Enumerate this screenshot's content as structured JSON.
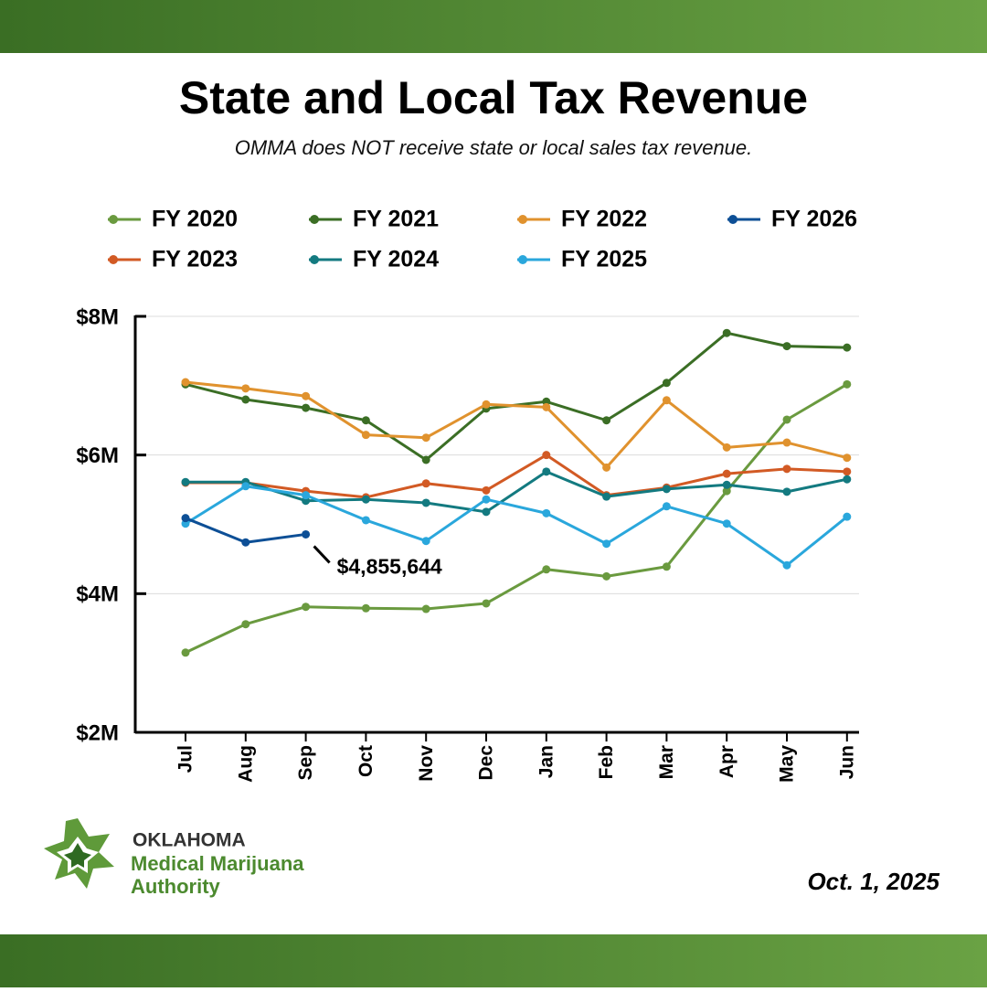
{
  "chart_data": {
    "type": "line",
    "title": "State and Local Tax Revenue",
    "subtitle": "OMMA does NOT receive state or local sales tax revenue.",
    "categories": [
      "Jul",
      "Aug",
      "Sep",
      "Oct",
      "Nov",
      "Dec",
      "Jan",
      "Feb",
      "Mar",
      "Apr",
      "May",
      "Jun"
    ],
    "series": [
      {
        "name": "FY 2020",
        "color": "#6a9a3f",
        "values": [
          3150000,
          3560000,
          3810000,
          3790000,
          3780000,
          3860000,
          4350000,
          4250000,
          4390000,
          5480000,
          6510000,
          7020000
        ]
      },
      {
        "name": "FY 2021",
        "color": "#3b6e25",
        "values": [
          7020000,
          6800000,
          6680000,
          6500000,
          5930000,
          6670000,
          6770000,
          6500000,
          7040000,
          7760000,
          7570000,
          7550000
        ]
      },
      {
        "name": "FY 2022",
        "color": "#e0922e",
        "values": [
          7050000,
          6960000,
          6850000,
          6290000,
          6250000,
          6730000,
          6690000,
          5820000,
          6790000,
          6110000,
          6180000,
          5960000
        ]
      },
      {
        "name": "FY 2023",
        "color": "#d25a24",
        "values": [
          5600000,
          5600000,
          5480000,
          5390000,
          5590000,
          5490000,
          6000000,
          5420000,
          5530000,
          5730000,
          5800000,
          5760000
        ]
      },
      {
        "name": "FY 2024",
        "color": "#137a80",
        "values": [
          5610000,
          5610000,
          5340000,
          5360000,
          5310000,
          5180000,
          5760000,
          5400000,
          5510000,
          5570000,
          5470000,
          5650000
        ]
      },
      {
        "name": "FY 2025",
        "color": "#2aa7dc",
        "values": [
          5010000,
          5550000,
          5420000,
          5060000,
          4760000,
          5360000,
          5160000,
          4720000,
          5260000,
          5010000,
          4410000,
          5110000
        ]
      },
      {
        "name": "FY 2026",
        "color": "#0d4f96",
        "values": [
          5090000,
          4740000,
          4855644,
          null,
          null,
          null,
          null,
          null,
          null,
          null,
          null,
          null
        ],
        "value_labels": [
          null,
          null,
          "$4,855,644",
          null,
          null,
          null,
          null,
          null,
          null,
          null,
          null,
          null
        ]
      }
    ],
    "ylim": [
      2000000,
      8000000
    ],
    "yticks": [
      {
        "value": 2000000,
        "label": "$2M"
      },
      {
        "value": 4000000,
        "label": "$4M"
      },
      {
        "value": 6000000,
        "label": "$6M"
      },
      {
        "value": 8000000,
        "label": "$8M"
      }
    ],
    "grid": true
  },
  "footer": {
    "org_lines": [
      "OKLAHOMA",
      "Medical Marijuana",
      "Authority"
    ],
    "date": "Oct. 1, 2025"
  }
}
